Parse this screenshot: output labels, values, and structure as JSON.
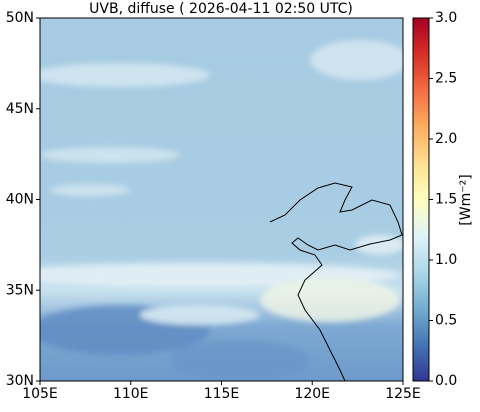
{
  "chart_data": {
    "type": "heatmap",
    "title": "UVB, diffuse ( 2026-04-11 02:50 UTC)",
    "xlim": [
      105,
      125
    ],
    "xticks": [
      {
        "value": 105,
        "label": "105E"
      },
      {
        "value": 110,
        "label": "110E"
      },
      {
        "value": 115,
        "label": "115E"
      },
      {
        "value": 120,
        "label": "120E"
      },
      {
        "value": 125,
        "label": "125E"
      }
    ],
    "ylim": [
      30,
      50
    ],
    "yticks": [
      {
        "value": 30,
        "label": "30N"
      },
      {
        "value": 35,
        "label": "35N"
      },
      {
        "value": 40,
        "label": "40N"
      },
      {
        "value": 45,
        "label": "45N"
      },
      {
        "value": 50,
        "label": "50N"
      }
    ],
    "colorbar": {
      "label": "[Wm⁻²]",
      "lim": [
        0,
        3
      ],
      "ticks": [
        {
          "value": 0,
          "label": "0.0"
        },
        0.5,
        {
          "value": 1,
          "label": "1.0"
        },
        1.5,
        {
          "value": 2,
          "label": "2.0"
        },
        2.5,
        {
          "value": 3,
          "label": "3.0"
        }
      ],
      "colormap": [
        "#313695",
        "#4575b4",
        "#74add1",
        "#abd9e9",
        "#e0f3f8",
        "#ffffbf",
        "#fee090",
        "#fdae61",
        "#f46d43",
        "#d73027",
        "#a50026"
      ]
    }
  }
}
